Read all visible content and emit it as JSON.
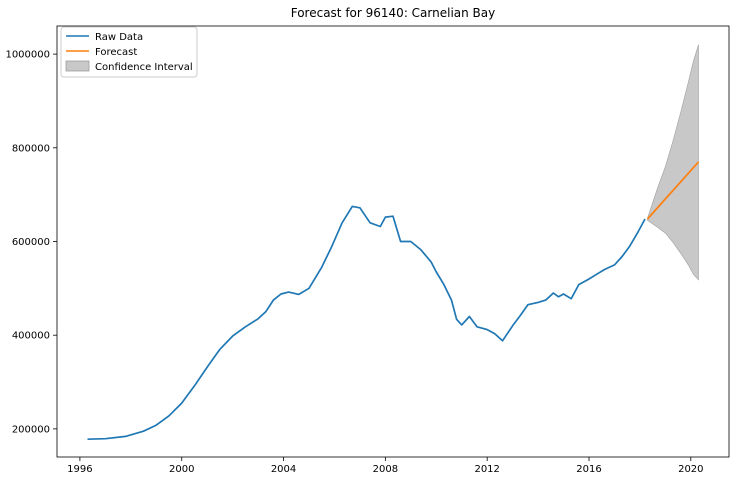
{
  "chart_data": {
    "type": "line",
    "title": "Forecast for 96140:  Carnelian Bay",
    "xlabel": "",
    "ylabel": "",
    "xlim": [
      1995.1,
      2021.5
    ],
    "ylim": [
      140000,
      1060000
    ],
    "x_ticks": [
      1996,
      2000,
      2004,
      2008,
      2012,
      2016,
      2020
    ],
    "x_tick_labels": [
      "1996",
      "2000",
      "2004",
      "2008",
      "2012",
      "2016",
      "2020"
    ],
    "y_ticks": [
      200000,
      400000,
      600000,
      800000,
      1000000
    ],
    "y_tick_labels": [
      "200000",
      "400000",
      "600000",
      "800000",
      "1000000"
    ],
    "grid": false,
    "legend_position": "top-left",
    "legend": [
      "Raw Data",
      "Forecast",
      "Confidence Interval"
    ],
    "series": [
      {
        "name": "Raw Data",
        "color": "#1f77b4",
        "x": [
          1996.3,
          1997.0,
          1997.8,
          1998.5,
          1999.0,
          1999.5,
          2000.0,
          2000.5,
          2001.0,
          2001.5,
          2002.0,
          2002.5,
          2003.0,
          2003.3,
          2003.6,
          2003.9,
          2004.2,
          2004.6,
          2005.0,
          2005.5,
          2005.9,
          2006.3,
          2006.7,
          2007.0,
          2007.4,
          2007.8,
          2008.0,
          2008.3,
          2008.6,
          2009.0,
          2009.4,
          2009.8,
          2010.0,
          2010.3,
          2010.6,
          2010.8,
          2011.0,
          2011.3,
          2011.6,
          2012.0,
          2012.3,
          2012.6,
          2013.0,
          2013.3,
          2013.6,
          2014.0,
          2014.3,
          2014.6,
          2014.8,
          2015.0,
          2015.3,
          2015.6,
          2016.0,
          2016.3,
          2016.6,
          2017.0,
          2017.3,
          2017.6,
          2017.9,
          2018.2
        ],
        "y": [
          178000,
          179000,
          184000,
          195000,
          208000,
          228000,
          255000,
          292000,
          332000,
          370000,
          398000,
          418000,
          435000,
          450000,
          475000,
          488000,
          492000,
          487000,
          500000,
          545000,
          590000,
          640000,
          675000,
          672000,
          640000,
          632000,
          652000,
          654000,
          600000,
          600000,
          582000,
          556000,
          535000,
          508000,
          475000,
          434000,
          422000,
          440000,
          418000,
          412000,
          403000,
          388000,
          420000,
          442000,
          465000,
          470000,
          475000,
          490000,
          482000,
          488000,
          478000,
          508000,
          520000,
          530000,
          540000,
          550000,
          568000,
          590000,
          618000,
          648000
        ]
      },
      {
        "name": "Forecast",
        "color": "#ff7f0e",
        "x": [
          2018.3,
          2020.3
        ],
        "y": [
          648000,
          770000
        ]
      }
    ],
    "confidence_interval": {
      "name": "Confidence Interval",
      "color": "#c8c8c8",
      "x": [
        2018.3,
        2018.7,
        2019.0,
        2019.3,
        2019.6,
        2019.9,
        2020.1,
        2020.3
      ],
      "upper": [
        650000,
        715000,
        760000,
        815000,
        875000,
        940000,
        985000,
        1020000
      ],
      "lower": [
        645000,
        630000,
        618000,
        598000,
        575000,
        550000,
        530000,
        518000
      ]
    }
  }
}
